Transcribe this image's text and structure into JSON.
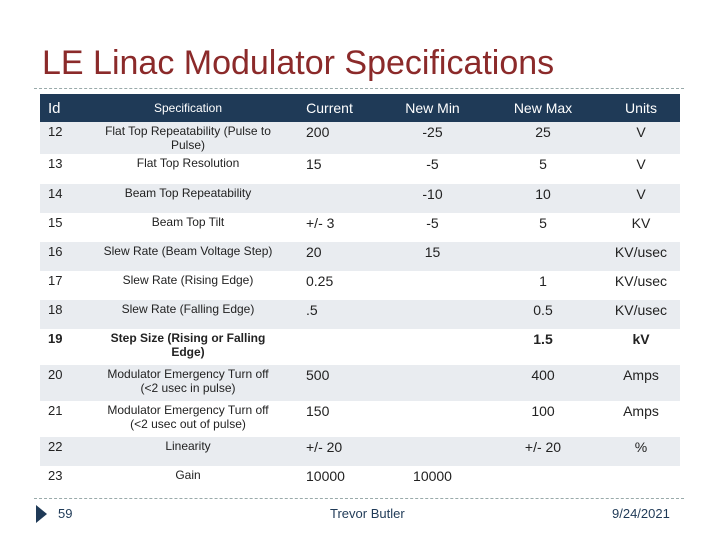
{
  "title": "LE Linac Modulator Specifications",
  "table": {
    "headers": [
      "Id",
      "Specification",
      "Current",
      "New Min",
      "New Max",
      "Units"
    ],
    "rows": [
      {
        "id": "12",
        "spec": "Flat Top Repeatability (Pulse to Pulse)",
        "current": "200",
        "min": "-25",
        "max": "25",
        "units": "V"
      },
      {
        "id": "13",
        "spec": "Flat Top Resolution",
        "current": "15",
        "min": "-5",
        "max": "5",
        "units": "V"
      },
      {
        "id": "14",
        "spec": "Beam Top Repeatability",
        "current": "",
        "min": "-10",
        "max": "10",
        "units": "V"
      },
      {
        "id": "15",
        "spec": "Beam Top Tilt",
        "current": "+/- 3",
        "min": "-5",
        "max": "5",
        "units": "KV"
      },
      {
        "id": "16",
        "spec": "Slew Rate (Beam Voltage Step)",
        "current": "20",
        "min": "15",
        "max": "",
        "units": "KV/usec"
      },
      {
        "id": "17",
        "spec": "Slew Rate (Rising Edge)",
        "current": "0.25",
        "min": "",
        "max": "1",
        "units": "KV/usec"
      },
      {
        "id": "18",
        "spec": "Slew Rate (Falling Edge)",
        "current": ".5",
        "min": "",
        "max": "0.5",
        "units": "KV/usec"
      },
      {
        "id": "19",
        "spec": "Step Size (Rising or Falling Edge)",
        "current": "",
        "min": "",
        "max": "1.5",
        "units": "kV",
        "bold": true
      },
      {
        "id": "20",
        "spec": "Modulator Emergency Turn off (<2 usec in pulse)",
        "current": "500",
        "min": "",
        "max": "400",
        "units": "Amps"
      },
      {
        "id": "21",
        "spec": "Modulator Emergency Turn off (<2 usec out of pulse)",
        "current": "150",
        "min": "",
        "max": "100",
        "units": "Amps"
      },
      {
        "id": "22",
        "spec": "Linearity",
        "current": "+/- 20",
        "min": "",
        "max": "+/- 20",
        "units": "%"
      },
      {
        "id": "23",
        "spec": "Gain",
        "current": "10000",
        "min": "10000",
        "max": "",
        "units": ""
      }
    ]
  },
  "footer": {
    "page": "59",
    "author": "Trevor Butler",
    "date": "9/24/2021"
  },
  "colors": {
    "title": "#8b2a2a",
    "header_bg": "#1f3a57",
    "row_band": "#e9ecf0"
  }
}
